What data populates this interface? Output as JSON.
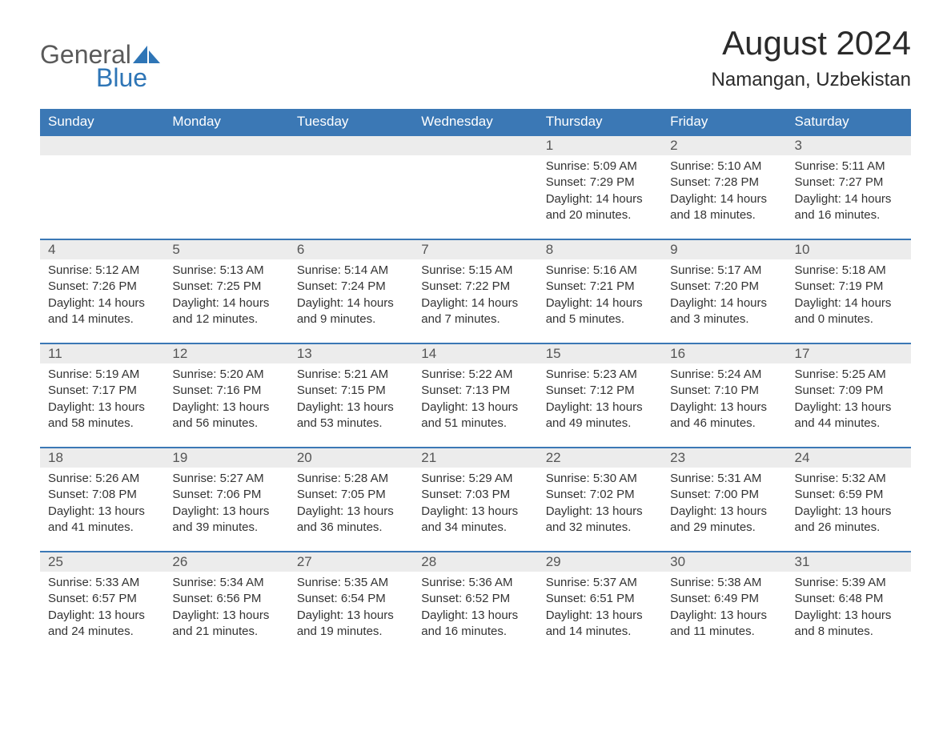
{
  "logo": {
    "general": "General",
    "blue": "Blue"
  },
  "title": "August 2024",
  "location": "Namangan, Uzbekistan",
  "colors": {
    "header_bg": "#3b78b5",
    "header_text": "#ffffff",
    "daynum_bg": "#ececec",
    "daynum_text": "#555555",
    "body_text": "#333333",
    "accent": "#2e75b6"
  },
  "day_names": [
    "Sunday",
    "Monday",
    "Tuesday",
    "Wednesday",
    "Thursday",
    "Friday",
    "Saturday"
  ],
  "weeks": [
    [
      {
        "blank": true
      },
      {
        "blank": true
      },
      {
        "blank": true
      },
      {
        "blank": true
      },
      {
        "n": "1",
        "sunrise": "Sunrise: 5:09 AM",
        "sunset": "Sunset: 7:29 PM",
        "daylight": "Daylight: 14 hours and 20 minutes."
      },
      {
        "n": "2",
        "sunrise": "Sunrise: 5:10 AM",
        "sunset": "Sunset: 7:28 PM",
        "daylight": "Daylight: 14 hours and 18 minutes."
      },
      {
        "n": "3",
        "sunrise": "Sunrise: 5:11 AM",
        "sunset": "Sunset: 7:27 PM",
        "daylight": "Daylight: 14 hours and 16 minutes."
      }
    ],
    [
      {
        "n": "4",
        "sunrise": "Sunrise: 5:12 AM",
        "sunset": "Sunset: 7:26 PM",
        "daylight": "Daylight: 14 hours and 14 minutes."
      },
      {
        "n": "5",
        "sunrise": "Sunrise: 5:13 AM",
        "sunset": "Sunset: 7:25 PM",
        "daylight": "Daylight: 14 hours and 12 minutes."
      },
      {
        "n": "6",
        "sunrise": "Sunrise: 5:14 AM",
        "sunset": "Sunset: 7:24 PM",
        "daylight": "Daylight: 14 hours and 9 minutes."
      },
      {
        "n": "7",
        "sunrise": "Sunrise: 5:15 AM",
        "sunset": "Sunset: 7:22 PM",
        "daylight": "Daylight: 14 hours and 7 minutes."
      },
      {
        "n": "8",
        "sunrise": "Sunrise: 5:16 AM",
        "sunset": "Sunset: 7:21 PM",
        "daylight": "Daylight: 14 hours and 5 minutes."
      },
      {
        "n": "9",
        "sunrise": "Sunrise: 5:17 AM",
        "sunset": "Sunset: 7:20 PM",
        "daylight": "Daylight: 14 hours and 3 minutes."
      },
      {
        "n": "10",
        "sunrise": "Sunrise: 5:18 AM",
        "sunset": "Sunset: 7:19 PM",
        "daylight": "Daylight: 14 hours and 0 minutes."
      }
    ],
    [
      {
        "n": "11",
        "sunrise": "Sunrise: 5:19 AM",
        "sunset": "Sunset: 7:17 PM",
        "daylight": "Daylight: 13 hours and 58 minutes."
      },
      {
        "n": "12",
        "sunrise": "Sunrise: 5:20 AM",
        "sunset": "Sunset: 7:16 PM",
        "daylight": "Daylight: 13 hours and 56 minutes."
      },
      {
        "n": "13",
        "sunrise": "Sunrise: 5:21 AM",
        "sunset": "Sunset: 7:15 PM",
        "daylight": "Daylight: 13 hours and 53 minutes."
      },
      {
        "n": "14",
        "sunrise": "Sunrise: 5:22 AM",
        "sunset": "Sunset: 7:13 PM",
        "daylight": "Daylight: 13 hours and 51 minutes."
      },
      {
        "n": "15",
        "sunrise": "Sunrise: 5:23 AM",
        "sunset": "Sunset: 7:12 PM",
        "daylight": "Daylight: 13 hours and 49 minutes."
      },
      {
        "n": "16",
        "sunrise": "Sunrise: 5:24 AM",
        "sunset": "Sunset: 7:10 PM",
        "daylight": "Daylight: 13 hours and 46 minutes."
      },
      {
        "n": "17",
        "sunrise": "Sunrise: 5:25 AM",
        "sunset": "Sunset: 7:09 PM",
        "daylight": "Daylight: 13 hours and 44 minutes."
      }
    ],
    [
      {
        "n": "18",
        "sunrise": "Sunrise: 5:26 AM",
        "sunset": "Sunset: 7:08 PM",
        "daylight": "Daylight: 13 hours and 41 minutes."
      },
      {
        "n": "19",
        "sunrise": "Sunrise: 5:27 AM",
        "sunset": "Sunset: 7:06 PM",
        "daylight": "Daylight: 13 hours and 39 minutes."
      },
      {
        "n": "20",
        "sunrise": "Sunrise: 5:28 AM",
        "sunset": "Sunset: 7:05 PM",
        "daylight": "Daylight: 13 hours and 36 minutes."
      },
      {
        "n": "21",
        "sunrise": "Sunrise: 5:29 AM",
        "sunset": "Sunset: 7:03 PM",
        "daylight": "Daylight: 13 hours and 34 minutes."
      },
      {
        "n": "22",
        "sunrise": "Sunrise: 5:30 AM",
        "sunset": "Sunset: 7:02 PM",
        "daylight": "Daylight: 13 hours and 32 minutes."
      },
      {
        "n": "23",
        "sunrise": "Sunrise: 5:31 AM",
        "sunset": "Sunset: 7:00 PM",
        "daylight": "Daylight: 13 hours and 29 minutes."
      },
      {
        "n": "24",
        "sunrise": "Sunrise: 5:32 AM",
        "sunset": "Sunset: 6:59 PM",
        "daylight": "Daylight: 13 hours and 26 minutes."
      }
    ],
    [
      {
        "n": "25",
        "sunrise": "Sunrise: 5:33 AM",
        "sunset": "Sunset: 6:57 PM",
        "daylight": "Daylight: 13 hours and 24 minutes."
      },
      {
        "n": "26",
        "sunrise": "Sunrise: 5:34 AM",
        "sunset": "Sunset: 6:56 PM",
        "daylight": "Daylight: 13 hours and 21 minutes."
      },
      {
        "n": "27",
        "sunrise": "Sunrise: 5:35 AM",
        "sunset": "Sunset: 6:54 PM",
        "daylight": "Daylight: 13 hours and 19 minutes."
      },
      {
        "n": "28",
        "sunrise": "Sunrise: 5:36 AM",
        "sunset": "Sunset: 6:52 PM",
        "daylight": "Daylight: 13 hours and 16 minutes."
      },
      {
        "n": "29",
        "sunrise": "Sunrise: 5:37 AM",
        "sunset": "Sunset: 6:51 PM",
        "daylight": "Daylight: 13 hours and 14 minutes."
      },
      {
        "n": "30",
        "sunrise": "Sunrise: 5:38 AM",
        "sunset": "Sunset: 6:49 PM",
        "daylight": "Daylight: 13 hours and 11 minutes."
      },
      {
        "n": "31",
        "sunrise": "Sunrise: 5:39 AM",
        "sunset": "Sunset: 6:48 PM",
        "daylight": "Daylight: 13 hours and 8 minutes."
      }
    ]
  ]
}
